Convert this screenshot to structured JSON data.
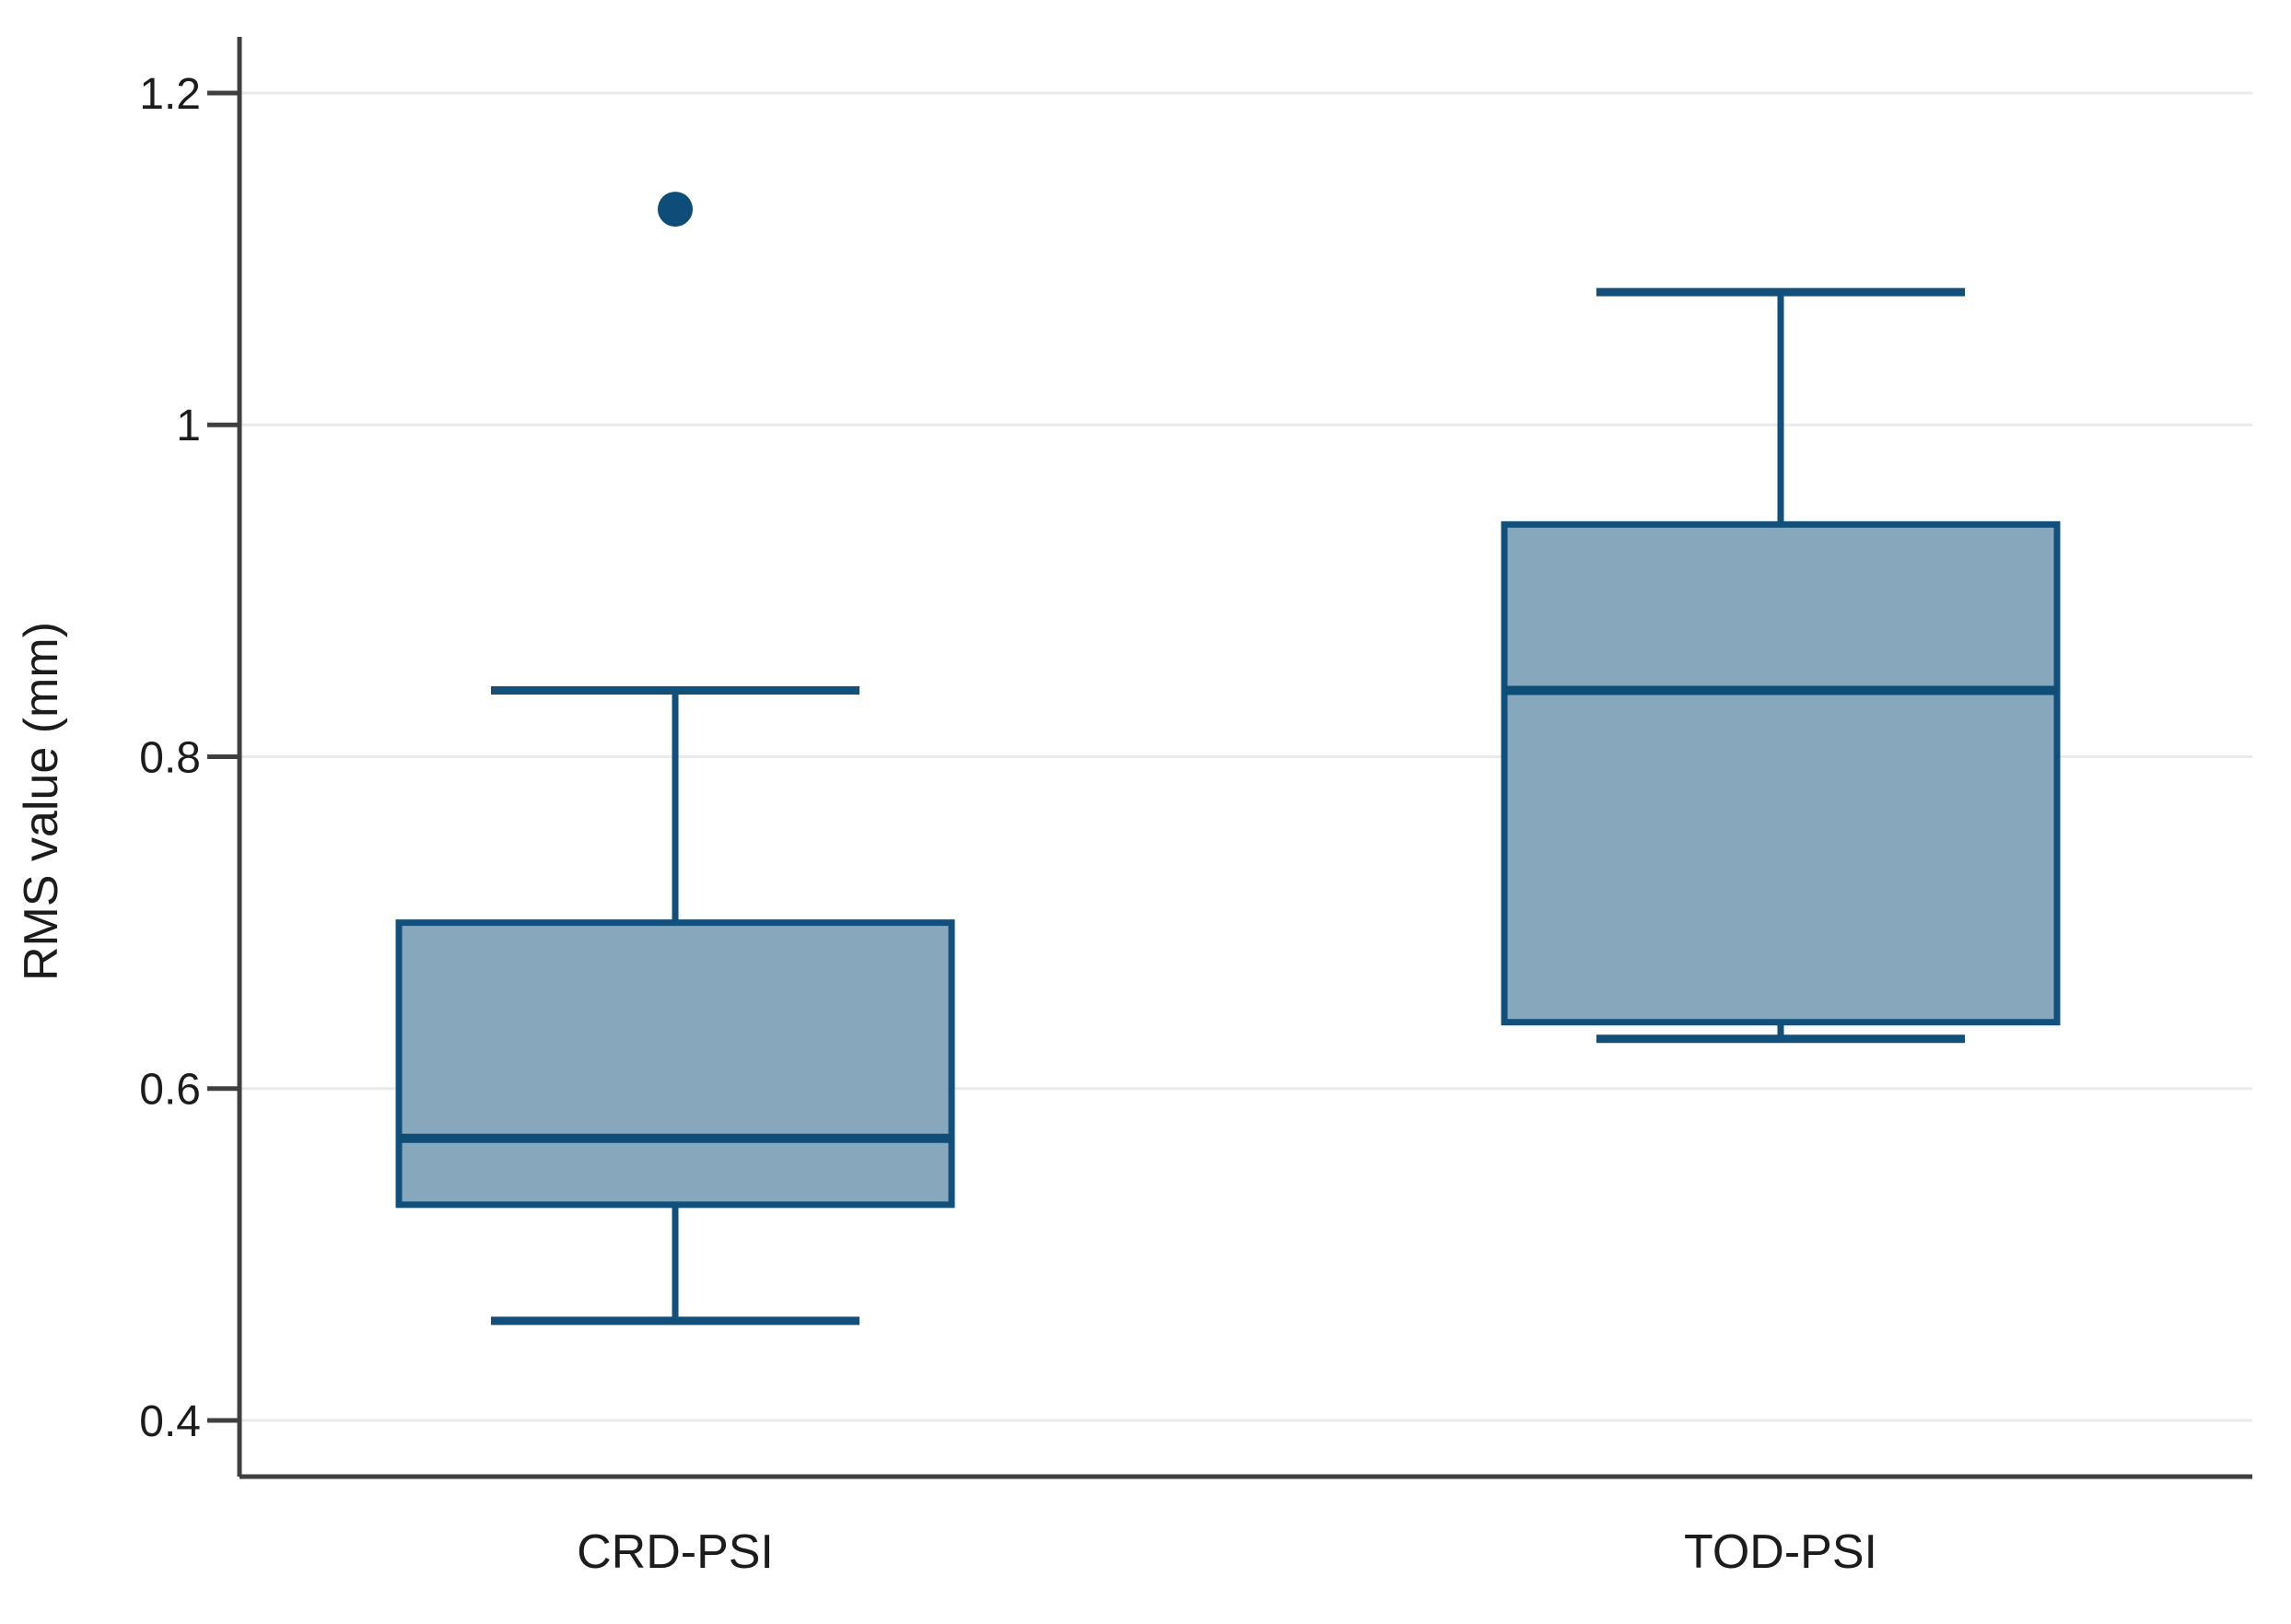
{
  "figure": {
    "background": "#ffffff",
    "description": "Box plot comparing RMS value (mm) for CRD-PSI and TOD-PSI"
  },
  "chart_data": {
    "type": "boxplot",
    "title": "",
    "xlabel": "",
    "ylabel": "RMS value (mm)",
    "categories": [
      "CRD-PSI",
      "TOD-PSI"
    ],
    "yticks": [
      1.2,
      1.0,
      0.8,
      0.6,
      0.4
    ],
    "ytick_labels": [
      "1.2",
      "1",
      "0.8",
      "0.6",
      "0.4"
    ],
    "ylim": [
      0.35,
      1.23
    ],
    "grid": "horizontal",
    "legend": "none",
    "series": [
      {
        "category": "CRD-PSI",
        "whisker_low": 0.46,
        "q1": 0.53,
        "median": 0.57,
        "q3": 0.7,
        "whisker_high": 0.84,
        "outliers": [
          1.13
        ]
      },
      {
        "category": "TOD-PSI",
        "whisker_low": 0.63,
        "q1": 0.64,
        "median": 0.84,
        "q3": 0.94,
        "whisker_high": 1.08,
        "outliers": []
      }
    ],
    "colors": {
      "box_fill": "#86a7bc",
      "box_line": "#12507b",
      "median_line": "#0d4d78",
      "outlier": "#0d4d78",
      "grid": "#eaeaea",
      "axis": "#3f3f3f",
      "text": "#1c1c1c"
    }
  }
}
